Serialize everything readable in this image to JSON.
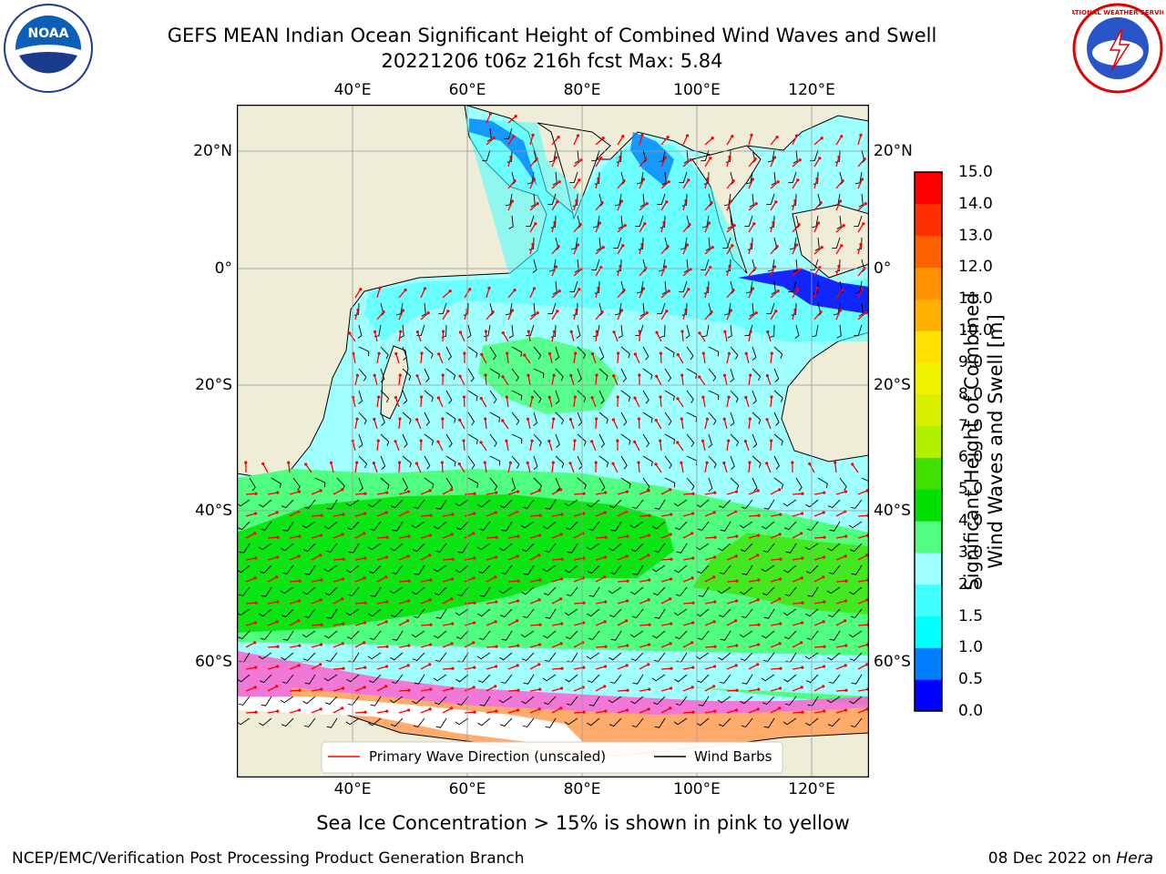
{
  "title": {
    "line1": "GEFS MEAN Indian Ocean Significant Height of Combined Wind Waves and Swell",
    "line2": "20221206 t06z 216h fcst   Max: 5.84"
  },
  "axes": {
    "lon_ticks": [
      "40°E",
      "60°E",
      "80°E",
      "100°E",
      "120°E"
    ],
    "lat_ticks": [
      "20°N",
      "0°",
      "20°S",
      "40°S",
      "60°S"
    ]
  },
  "legend": {
    "wave_label": "Primary Wave Direction (unscaled)",
    "wind_label": "Wind Barbs",
    "wave_color": "#ff0000",
    "wind_color": "#000000"
  },
  "colorbar": {
    "label_line1": "Significant Height of Combined",
    "label_line2": "Wind Waves and Swell [m]",
    "ticks": [
      "0.0",
      "0.5",
      "1.0",
      "1.5",
      "2.0",
      "3.0",
      "4.0",
      "5.0",
      "6.0",
      "7.0",
      "8.0",
      "9.0",
      "10.0",
      "11.0",
      "12.0",
      "13.0",
      "14.0",
      "15.0"
    ],
    "colors": [
      "#0000ff",
      "#0080ff",
      "#00ffff",
      "#40ffff",
      "#a0ffff",
      "#50ff80",
      "#00e000",
      "#40e000",
      "#b0f000",
      "#d8f000",
      "#f0f000",
      "#ffe000",
      "#ffb000",
      "#ff9000",
      "#ff6000",
      "#ff3000",
      "#ff0000"
    ]
  },
  "footer": {
    "note": "Sea Ice Concentration > 15% is shown in pink to yellow",
    "credit": "NCEP/EMC/Verification Post Processing Product Generation Branch",
    "date": "08 Dec 2022 on ",
    "machine": "Hera"
  },
  "logos": {
    "left_text": "NOAA",
    "right_text": "NATIONAL WEATHER SERVICE"
  },
  "colors": {
    "land": "#efedd8",
    "ice": "#ffffff",
    "ice_pink": "#ff60d0",
    "ice_orange": "#ffb060"
  }
}
